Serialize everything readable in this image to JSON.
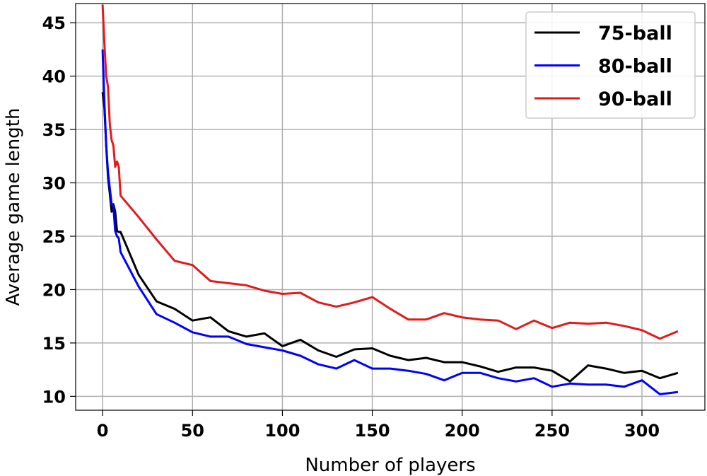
{
  "chart_data": {
    "type": "line",
    "title": "",
    "xlabel": "Number of players",
    "ylabel": "Average game length",
    "xlim": [
      -15,
      335
    ],
    "ylim": [
      8.7,
      46.8
    ],
    "xticks": [
      0,
      50,
      100,
      150,
      200,
      250,
      300
    ],
    "yticks": [
      10,
      15,
      20,
      25,
      30,
      35,
      40,
      45
    ],
    "grid": true,
    "legend_position": "top-right",
    "series": [
      {
        "name": "75-ball",
        "color": "#000000",
        "x": [
          0,
          1,
          2,
          3,
          4,
          5,
          6,
          7,
          8,
          9,
          10,
          20,
          30,
          40,
          50,
          60,
          70,
          80,
          90,
          100,
          110,
          120,
          130,
          140,
          150,
          160,
          170,
          180,
          190,
          200,
          210,
          220,
          230,
          240,
          250,
          260,
          270,
          280,
          290,
          300,
          310,
          320
        ],
        "y": [
          38.5,
          37.0,
          33.5,
          30.5,
          29.0,
          27.3,
          28.0,
          27.3,
          25.5,
          25.4,
          25.4,
          21.4,
          18.9,
          18.2,
          17.1,
          17.4,
          16.1,
          15.6,
          15.9,
          14.7,
          15.3,
          14.3,
          13.7,
          14.4,
          14.5,
          13.8,
          13.4,
          13.6,
          13.2,
          13.2,
          12.8,
          12.3,
          12.7,
          12.7,
          12.4,
          11.4,
          12.9,
          12.6,
          12.2,
          12.4,
          11.7,
          12.2
        ]
      },
      {
        "name": "80-ball",
        "color": "#0000ff",
        "x": [
          0,
          1,
          2,
          3,
          4,
          5,
          6,
          7,
          8,
          9,
          10,
          20,
          30,
          40,
          50,
          60,
          70,
          80,
          90,
          100,
          110,
          120,
          130,
          140,
          150,
          160,
          170,
          180,
          190,
          200,
          210,
          220,
          230,
          240,
          250,
          260,
          270,
          280,
          290,
          300,
          310,
          320
        ],
        "y": [
          42.5,
          37.5,
          33.5,
          31.0,
          29.5,
          28.0,
          27.8,
          25.5,
          25.0,
          24.8,
          23.5,
          20.3,
          17.7,
          16.9,
          16.0,
          15.6,
          15.6,
          14.9,
          14.6,
          14.3,
          13.8,
          13.0,
          12.6,
          13.4,
          12.6,
          12.6,
          12.4,
          12.1,
          11.5,
          12.2,
          12.2,
          11.7,
          11.4,
          11.7,
          10.9,
          11.2,
          11.1,
          11.1,
          10.9,
          11.5,
          10.2,
          10.4
        ]
      },
      {
        "name": "90-ball",
        "color": "#e01b1b",
        "x": [
          0,
          1,
          2,
          3,
          4,
          5,
          6,
          7,
          8,
          9,
          10,
          20,
          30,
          40,
          50,
          60,
          70,
          80,
          90,
          100,
          110,
          120,
          130,
          140,
          150,
          160,
          170,
          180,
          190,
          200,
          210,
          220,
          230,
          240,
          250,
          260,
          270,
          280,
          290,
          300,
          310,
          320
        ],
        "y": [
          46.7,
          43.0,
          40.0,
          39.0,
          35.5,
          34.0,
          33.5,
          31.5,
          32.0,
          31.5,
          28.8,
          26.8,
          24.7,
          22.7,
          22.3,
          20.8,
          20.6,
          20.4,
          19.9,
          19.6,
          19.7,
          18.8,
          18.4,
          18.8,
          19.3,
          18.2,
          17.2,
          17.2,
          17.8,
          17.4,
          17.2,
          17.1,
          16.3,
          17.1,
          16.4,
          16.9,
          16.8,
          16.9,
          16.6,
          16.2,
          15.4,
          16.1
        ]
      }
    ]
  }
}
